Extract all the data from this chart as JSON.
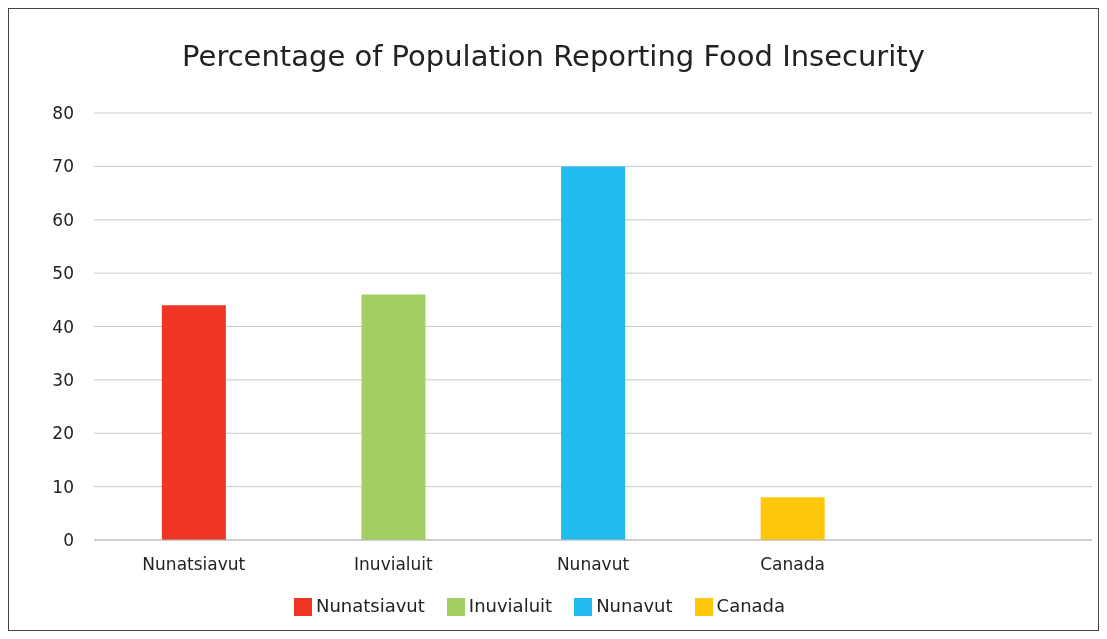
{
  "chart_data": {
    "type": "bar",
    "title": "Percentage of Population Reporting Food Insecurity",
    "categories": [
      "Nunatsiavut",
      "Inuvialuit",
      "Nunavut",
      "Canada",
      null
    ],
    "series": [
      {
        "name": "Nunatsiavut",
        "color": "#ef3524",
        "values": [
          44,
          null,
          null,
          null,
          null
        ]
      },
      {
        "name": "Inuvialuit",
        "color": "#a3cf62",
        "values": [
          null,
          46,
          null,
          null,
          null
        ]
      },
      {
        "name": "Nunavut",
        "color": "#21bbee",
        "values": [
          null,
          null,
          70,
          null,
          null
        ]
      },
      {
        "name": "Canada",
        "color": "#ffc70a",
        "values": [
          null,
          null,
          null,
          8,
          null
        ]
      }
    ],
    "stacked": true,
    "ylim": [
      0,
      80
    ],
    "yticks": [
      0,
      10,
      20,
      30,
      40,
      50,
      60,
      70,
      80
    ],
    "grid": "y",
    "legend": "bottom"
  }
}
